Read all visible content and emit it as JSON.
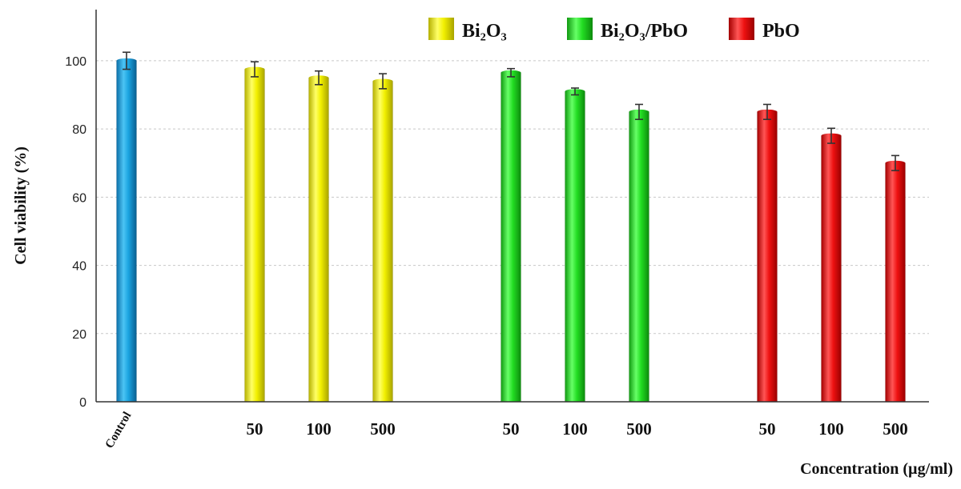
{
  "chart_data": {
    "type": "bar",
    "title": "",
    "ylabel": "Cell viability (%)",
    "xlabel": "Concentration  (µg/ml)",
    "ylim": [
      0,
      115
    ],
    "yticks": [
      0,
      20,
      40,
      60,
      80,
      100
    ],
    "grid": true,
    "legend_position": "top",
    "categories": [
      "Control",
      "50",
      "100",
      "500",
      "50",
      "100",
      "500",
      "50",
      "100",
      "500"
    ],
    "groups": [
      {
        "name": "Control",
        "color": "#1aa3e0",
        "bars": [
          {
            "label": "Control",
            "value": 100,
            "error": 2.5
          }
        ]
      },
      {
        "name": "Bi₂O₃",
        "color": "#f2f000",
        "bars": [
          {
            "label": "50",
            "value": 97.5,
            "error": 2.2
          },
          {
            "label": "100",
            "value": 95,
            "error": 2
          },
          {
            "label": "500",
            "value": 94,
            "error": 2.2
          }
        ]
      },
      {
        "name": "Bi₂O₃/PbO",
        "color": "#22dd22",
        "bars": [
          {
            "label": "50",
            "value": 96.5,
            "error": 1.2
          },
          {
            "label": "100",
            "value": 91,
            "error": 1
          },
          {
            "label": "500",
            "value": 85,
            "error": 2.2
          }
        ]
      },
      {
        "name": "PbO",
        "color": "#ee1111",
        "bars": [
          {
            "label": "50",
            "value": 85,
            "error": 2.2
          },
          {
            "label": "100",
            "value": 78,
            "error": 2.2
          },
          {
            "label": "500",
            "value": 70,
            "error": 2.2
          }
        ]
      }
    ],
    "legend": [
      {
        "label": "Bi₂O₃",
        "color": "#f2f000"
      },
      {
        "label": "Bi₂O₃/PbO",
        "color": "#22dd22"
      },
      {
        "label": "PbO",
        "color": "#ee1111"
      }
    ]
  }
}
